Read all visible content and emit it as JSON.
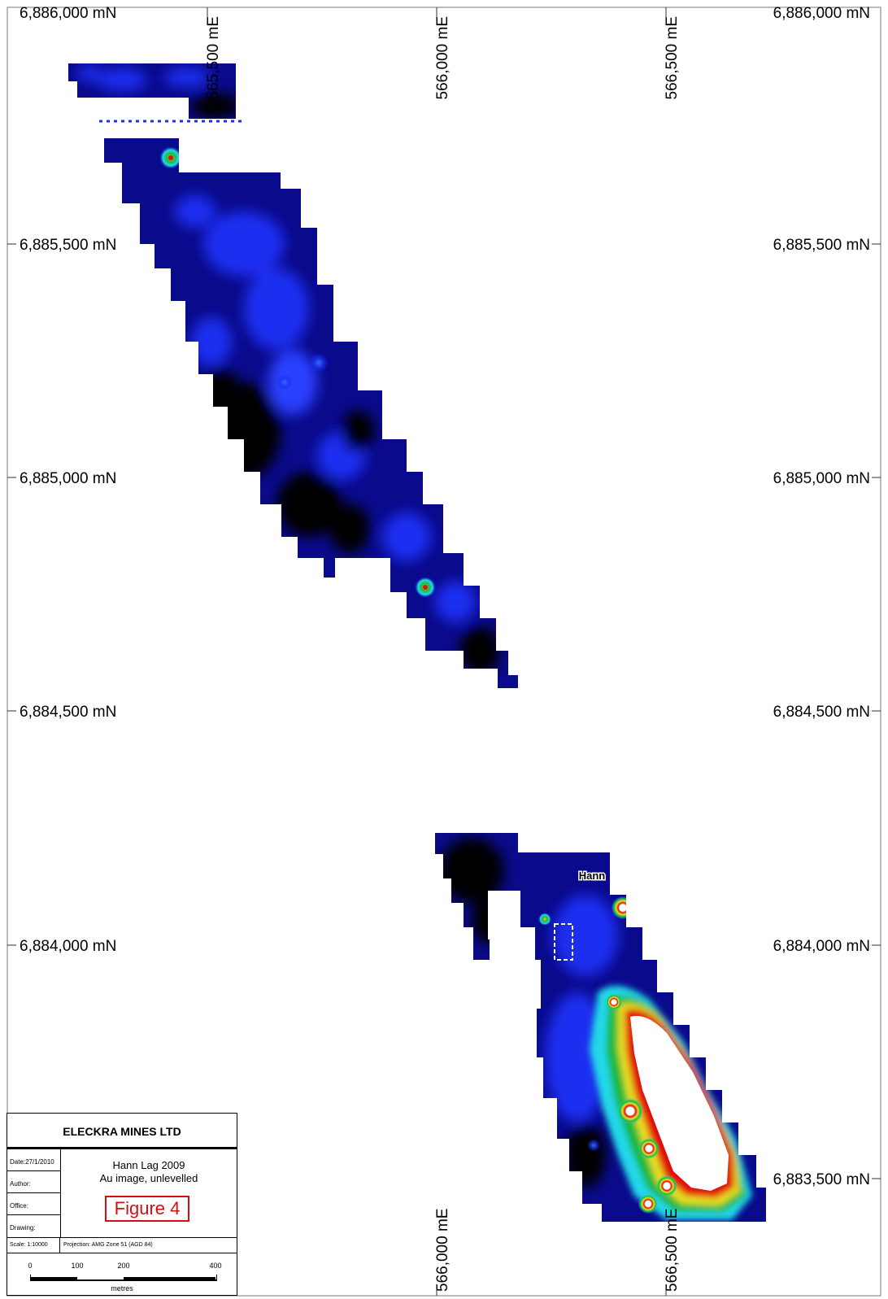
{
  "map": {
    "easting_labels": {
      "top": [
        "565,500 mE",
        "566,000 mE",
        "566,500 mE"
      ],
      "bottom": [
        "566,000 mE",
        "566,500 mE"
      ]
    },
    "northing_labels": [
      "6,886,000 mN",
      "6,885,500 mN",
      "6,885,000 mN",
      "6,884,500 mN",
      "6,884,000 mN",
      "6,883,500 mN"
    ],
    "place_label": "Hann",
    "colors": {
      "low": "#000000",
      "dark_blue": "#0a0a8c",
      "blue": "#1a2ff0",
      "cyan": "#22d8e8",
      "green": "#1fb83a",
      "yellow": "#e8e020",
      "red": "#e01010",
      "high": "#ffffff"
    }
  },
  "title_block": {
    "company": "ELECKRA MINES LTD",
    "title_line1": "Hann Lag 2009",
    "title_line2": "Au image, unlevelled",
    "figure": "Figure 4",
    "date_label": "Date:27/1/2010",
    "author_label": "Author:",
    "office_label": "Office:",
    "drawing_label": "Drawing:",
    "scale_label": "Scale: 1:10000",
    "projection_label": "Projection: AMG Zone 51 (AGD 84)",
    "scalebar_ticks": [
      "0",
      "100",
      "200",
      "400"
    ],
    "scalebar_units": "metres"
  }
}
